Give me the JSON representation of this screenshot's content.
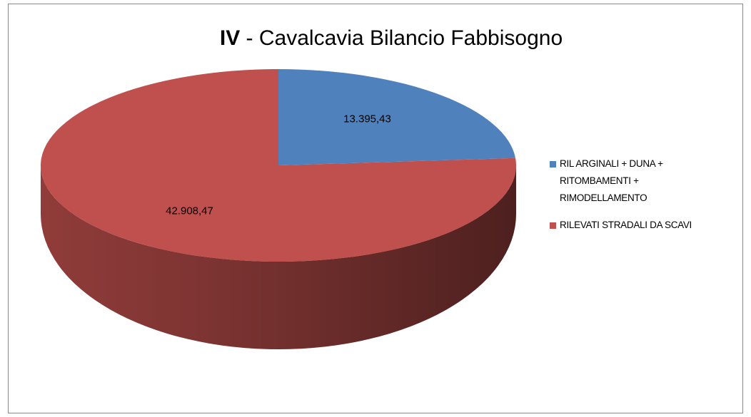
{
  "chart_data": {
    "type": "pie3d",
    "title": "IV - Cavalcavia Bilancio Fabbisogno",
    "categories": [
      "RIL ARGINALI + DUNA + RITOMBAMENTI + RIMODELLAMENTO",
      "RILEVATI STRADALI DA SCAVI"
    ],
    "values": [
      13395.43,
      42908.47
    ],
    "value_labels": [
      "13.395,43",
      "42.908,47"
    ],
    "colors": [
      "#4f81bd",
      "#c0504d"
    ],
    "legend": "right"
  }
}
